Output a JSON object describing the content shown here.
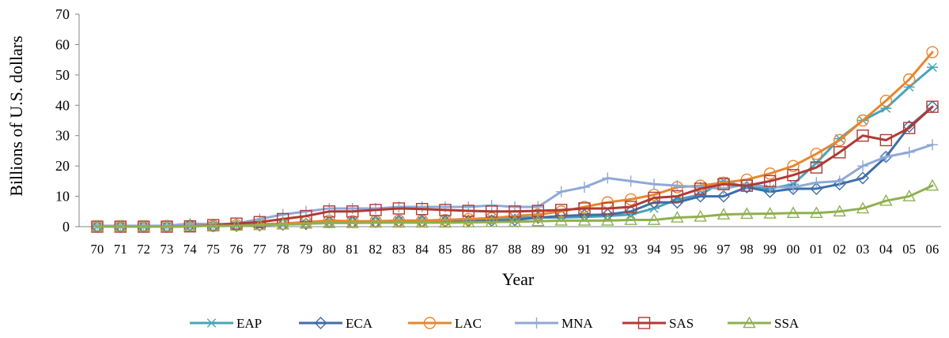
{
  "chart_data": {
    "type": "line",
    "title": "",
    "xlabel": "Year",
    "ylabel": "Billions of U.S. dollars",
    "ylim": [
      0,
      70
    ],
    "yticks": [
      0,
      10,
      20,
      30,
      40,
      50,
      60,
      70
    ],
    "categories": [
      "70",
      "71",
      "72",
      "73",
      "74",
      "75",
      "76",
      "77",
      "78",
      "79",
      "80",
      "81",
      "82",
      "83",
      "84",
      "85",
      "86",
      "87",
      "88",
      "89",
      "90",
      "91",
      "92",
      "93",
      "94",
      "95",
      "96",
      "97",
      "98",
      "99",
      "00",
      "01",
      "02",
      "03",
      "04",
      "05",
      "06"
    ],
    "legend_position": "bottom",
    "grid": false,
    "series": [
      {
        "name": "EAP",
        "color": "#4aa3b8",
        "marker": "asterisk",
        "values": [
          0.1,
          0.1,
          0.1,
          0.1,
          0.2,
          0.3,
          0.4,
          0.5,
          0.8,
          1.0,
          1.2,
          1.5,
          1.7,
          2.0,
          2.0,
          2.2,
          2.5,
          2.8,
          3.0,
          3.0,
          3.0,
          3.2,
          3.5,
          4.0,
          6.0,
          9.0,
          10.5,
          15.0,
          13.0,
          12.5,
          14.0,
          21.0,
          29.0,
          35.0,
          39.0,
          46.0,
          52.5
        ]
      },
      {
        "name": "ECA",
        "color": "#3d6ea8",
        "marker": "diamond",
        "values": [
          0.0,
          0.0,
          0.0,
          0.0,
          0.5,
          0.2,
          0.3,
          0.5,
          0.7,
          0.9,
          1.5,
          1.5,
          1.6,
          1.8,
          1.8,
          1.8,
          1.9,
          2.0,
          2.2,
          3.0,
          3.5,
          3.8,
          4.0,
          5.0,
          8.0,
          8.0,
          10.0,
          10.0,
          13.0,
          11.5,
          12.5,
          12.5,
          14.0,
          16.0,
          23.0,
          33.0,
          39.5
        ]
      },
      {
        "name": "LAC",
        "color": "#e8862e",
        "marker": "circle",
        "values": [
          0.1,
          0.1,
          0.1,
          0.2,
          0.2,
          0.3,
          0.5,
          0.8,
          1.0,
          1.5,
          2.0,
          1.8,
          1.8,
          2.0,
          2.0,
          2.2,
          2.5,
          2.8,
          3.5,
          4.0,
          5.0,
          6.5,
          8.0,
          9.0,
          10.5,
          13.0,
          13.5,
          14.5,
          15.5,
          17.5,
          20.0,
          24.0,
          28.5,
          35.0,
          41.5,
          48.5,
          57.5
        ]
      },
      {
        "name": "MNA",
        "color": "#8fa9d6",
        "marker": "plus",
        "values": [
          0.3,
          0.3,
          0.3,
          0.3,
          1.0,
          0.8,
          1.0,
          2.5,
          4.0,
          5.0,
          6.0,
          6.0,
          6.0,
          6.5,
          6.5,
          6.5,
          6.5,
          7.0,
          6.5,
          6.5,
          11.5,
          13.0,
          16.0,
          15.0,
          14.0,
          13.5,
          13.0,
          12.5,
          14.0,
          13.0,
          13.0,
          14.5,
          15.0,
          20.0,
          23.0,
          24.5,
          27.0
        ]
      },
      {
        "name": "SAS",
        "color": "#b03a35",
        "marker": "square",
        "values": [
          0.0,
          0.0,
          0.0,
          0.0,
          0.1,
          0.5,
          1.0,
          1.5,
          2.5,
          3.5,
          5.0,
          5.0,
          5.5,
          6.0,
          5.8,
          5.5,
          5.2,
          5.0,
          5.0,
          5.2,
          5.5,
          6.0,
          6.0,
          6.5,
          9.5,
          10.0,
          12.5,
          14.0,
          13.5,
          15.0,
          17.0,
          19.5,
          24.5,
          30.0,
          28.5,
          32.5,
          39.5
        ]
      },
      {
        "name": "SSA",
        "color": "#8fb050",
        "marker": "triangle",
        "values": [
          0.0,
          0.0,
          0.0,
          0.0,
          0.1,
          0.3,
          0.3,
          0.5,
          0.7,
          1.0,
          1.2,
          1.2,
          1.3,
          1.3,
          1.3,
          1.3,
          1.4,
          1.5,
          1.6,
          1.8,
          2.0,
          2.0,
          2.0,
          2.2,
          2.2,
          3.0,
          3.3,
          4.0,
          4.2,
          4.3,
          4.5,
          4.5,
          5.0,
          6.0,
          8.5,
          10.0,
          13.5
        ]
      }
    ]
  }
}
